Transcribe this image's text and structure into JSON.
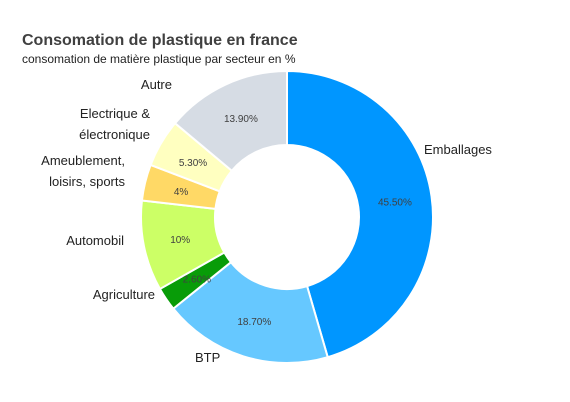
{
  "chart_data": {
    "type": "pie",
    "variant": "donut",
    "title": "Consomation de plastique en france",
    "subtitle": "consomation de matière plastique par secteur en %",
    "legend": "none",
    "slices": [
      {
        "label": "Emballages",
        "value": 45.5,
        "value_label": "45.50%",
        "color": "#0096ff"
      },
      {
        "label": "BTP",
        "value": 18.7,
        "value_label": "18.70%",
        "color": "#66c8ff"
      },
      {
        "label": "Agriculture",
        "value": 2.6,
        "value_label": "2.60%",
        "color": "#089c08"
      },
      {
        "label": "Automobil",
        "value": 10,
        "value_label": "10%",
        "color": "#ccff66"
      },
      {
        "label": "Ameublement, loisirs, sports",
        "label_lines": [
          "Ameublement,",
          "loisirs, sports"
        ],
        "value": 4,
        "value_label": "4%",
        "color": "#ffd966"
      },
      {
        "label": "Electrique & électronique",
        "label_lines": [
          "Electrique &",
          "électronique"
        ],
        "value": 5.3,
        "value_label": "5.30%",
        "color": "#ffffc0"
      },
      {
        "label": "Autre",
        "value": 13.9,
        "value_label": "13.90%",
        "color": "#d6dce4"
      }
    ]
  }
}
